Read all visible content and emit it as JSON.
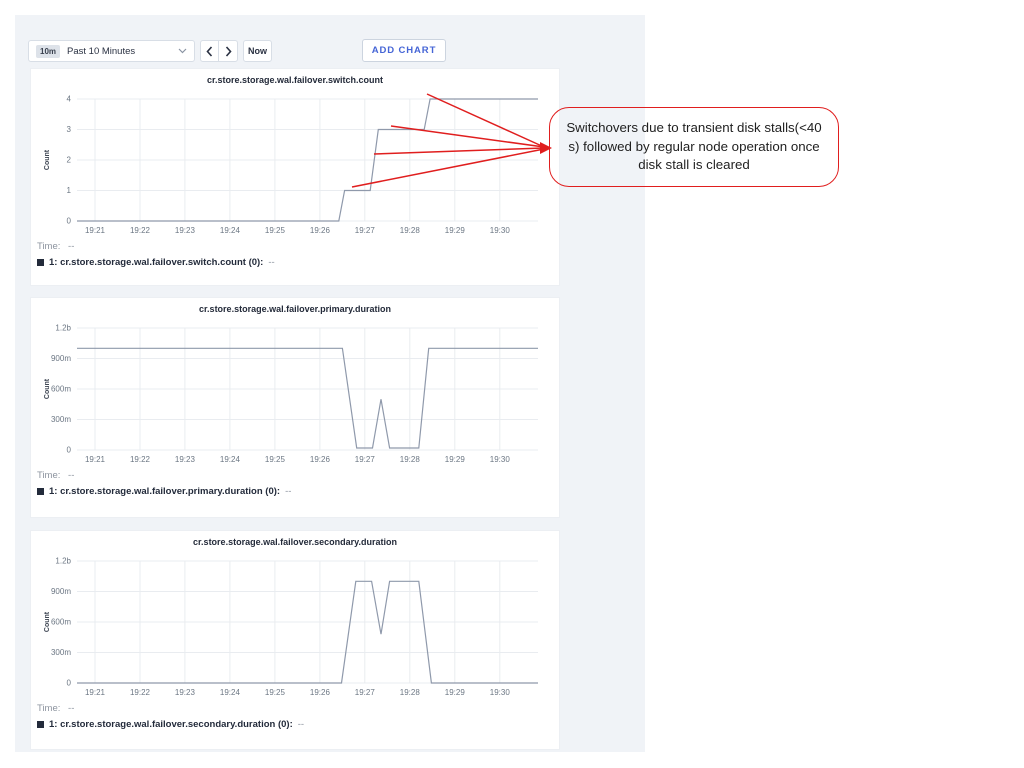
{
  "toolbar": {
    "range_badge": "10m",
    "range_label": "Past 10 Minutes",
    "now": "Now",
    "add_chart": "ADD CHART"
  },
  "icons": {
    "time_dropdown": "chevron-down",
    "time_prev": "chevron-left",
    "time_next": "chevron-right"
  },
  "annotation": {
    "text": "Switchovers due to transient disk stalls(<40 s) followed by regular node operation once disk stall is cleared",
    "color": "#e01e1e"
  },
  "charts": [
    {
      "title": "cr.store.storage.wal.failover.switch.count",
      "time_label": "Time:",
      "time_value": "--",
      "legend_label": "1: cr.store.storage.wal.failover.switch.count (0):",
      "legend_value": "--"
    },
    {
      "title": "cr.store.storage.wal.failover.primary.duration",
      "time_label": "Time:",
      "time_value": "--",
      "legend_label": "1: cr.store.storage.wal.failover.primary.duration (0):",
      "legend_value": "--"
    },
    {
      "title": "cr.store.storage.wal.failover.secondary.duration",
      "time_label": "Time:",
      "time_value": "--",
      "legend_label": "1: cr.store.storage.wal.failover.secondary.duration (0):",
      "legend_value": "--"
    }
  ],
  "chart_data": [
    {
      "type": "line",
      "title": "cr.store.storage.wal.failover.switch.count",
      "xlabel": "",
      "ylabel": "Count",
      "legend": [
        "1: cr.store.storage.wal.failover.switch.count (0)"
      ],
      "xlim": [
        20.6,
        30.85
      ],
      "ylim": [
        0,
        4
      ],
      "grid": true,
      "x_ticks": [
        [
          21,
          "19:21"
        ],
        [
          22,
          "19:22"
        ],
        [
          23,
          "19:23"
        ],
        [
          24,
          "19:24"
        ],
        [
          25,
          "19:25"
        ],
        [
          26,
          "19:26"
        ],
        [
          27,
          "19:27"
        ],
        [
          28,
          "19:28"
        ],
        [
          29,
          "19:29"
        ],
        [
          30,
          "19:30"
        ]
      ],
      "y_ticks": [
        [
          0,
          "0"
        ],
        [
          1,
          "1"
        ],
        [
          2,
          "2"
        ],
        [
          3,
          "3"
        ],
        [
          4,
          "4"
        ]
      ],
      "series": [
        {
          "name": "1: cr.store.storage.wal.failover.switch.count (0)",
          "points": [
            [
              20.6,
              0
            ],
            [
              26.42,
              0
            ],
            [
              26.55,
              1
            ],
            [
              27.12,
              1
            ],
            [
              27.3,
              3
            ],
            [
              28.32,
              3
            ],
            [
              28.45,
              4
            ],
            [
              30.85,
              4
            ]
          ]
        }
      ]
    },
    {
      "type": "line",
      "title": "cr.store.storage.wal.failover.primary.duration",
      "xlabel": "",
      "ylabel": "Count",
      "legend": [
        "1: cr.store.storage.wal.failover.primary.duration (0)"
      ],
      "xlim": [
        20.6,
        30.85
      ],
      "ylim": [
        0,
        1.2
      ],
      "grid": true,
      "x_ticks": [
        [
          21,
          "19:21"
        ],
        [
          22,
          "19:22"
        ],
        [
          23,
          "19:23"
        ],
        [
          24,
          "19:24"
        ],
        [
          25,
          "19:25"
        ],
        [
          26,
          "19:26"
        ],
        [
          27,
          "19:27"
        ],
        [
          28,
          "19:28"
        ],
        [
          29,
          "19:29"
        ],
        [
          30,
          "19:30"
        ]
      ],
      "y_ticks": [
        [
          0,
          "0"
        ],
        [
          0.3,
          "300m"
        ],
        [
          0.6,
          "600m"
        ],
        [
          0.9,
          "900m"
        ],
        [
          1.2,
          "1.2b"
        ]
      ],
      "series": [
        {
          "name": "1: cr.store.storage.wal.failover.primary.duration (0)",
          "points": [
            [
              20.6,
              1.0
            ],
            [
              26.5,
              1.0
            ],
            [
              26.82,
              0.02
            ],
            [
              27.17,
              0.02
            ],
            [
              27.36,
              0.5
            ],
            [
              27.55,
              0.02
            ],
            [
              28.2,
              0.02
            ],
            [
              28.42,
              1.0
            ],
            [
              30.85,
              1.0
            ]
          ]
        }
      ]
    },
    {
      "type": "line",
      "title": "cr.store.storage.wal.failover.secondary.duration",
      "xlabel": "",
      "ylabel": "Count",
      "legend": [
        "1: cr.store.storage.wal.failover.secondary.duration (0)"
      ],
      "xlim": [
        20.6,
        30.85
      ],
      "ylim": [
        0,
        1.2
      ],
      "grid": true,
      "x_ticks": [
        [
          21,
          "19:21"
        ],
        [
          22,
          "19:22"
        ],
        [
          23,
          "19:23"
        ],
        [
          24,
          "19:24"
        ],
        [
          25,
          "19:25"
        ],
        [
          26,
          "19:26"
        ],
        [
          27,
          "19:27"
        ],
        [
          28,
          "19:28"
        ],
        [
          29,
          "19:29"
        ],
        [
          30,
          "19:30"
        ]
      ],
      "y_ticks": [
        [
          0,
          "0"
        ],
        [
          0.3,
          "300m"
        ],
        [
          0.6,
          "600m"
        ],
        [
          0.9,
          "900m"
        ],
        [
          1.2,
          "1.2b"
        ]
      ],
      "series": [
        {
          "name": "1: cr.store.storage.wal.failover.secondary.duration (0)",
          "points": [
            [
              20.6,
              0
            ],
            [
              26.48,
              0
            ],
            [
              26.8,
              1.0
            ],
            [
              27.15,
              1.0
            ],
            [
              27.36,
              0.48
            ],
            [
              27.55,
              1.0
            ],
            [
              28.2,
              1.0
            ],
            [
              28.48,
              0
            ],
            [
              30.85,
              0
            ]
          ]
        }
      ]
    }
  ],
  "colors": {
    "panel_bg": "#f0f3f7",
    "card_bg": "#ffffff",
    "line": "#8f99ab",
    "grid": "#e9ecf0",
    "accent_blue": "#4565d6",
    "annotation_red": "#e01e1e",
    "legend_square": "#232b3b"
  }
}
